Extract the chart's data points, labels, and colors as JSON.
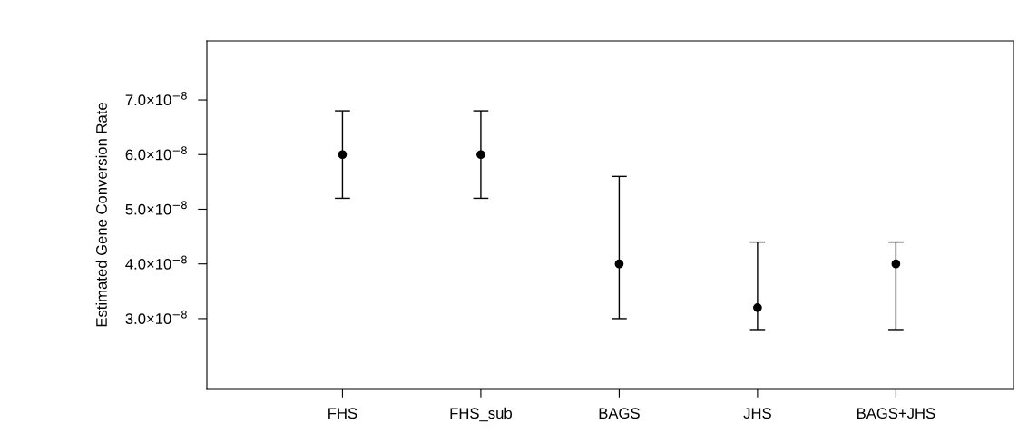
{
  "chart_data": {
    "type": "scatter",
    "ylabel": "Estimated Gene Conversion Rate",
    "categories": [
      "FHS",
      "FHS_sub",
      "BAGS",
      "JHS",
      "BAGS+JHS"
    ],
    "values": [
      6e-08,
      6e-08,
      4e-08,
      3.2e-08,
      4e-08
    ],
    "errors": [
      [
        5.2e-08,
        6.8e-08
      ],
      [
        5.2e-08,
        6.8e-08
      ],
      [
        3e-08,
        5.6e-08
      ],
      [
        2.8e-08,
        4.4e-08
      ],
      [
        2.8e-08,
        4.4e-08
      ]
    ],
    "color": "#000000",
    "marker": "circle",
    "ylim": [
      1.72e-08,
      8.08e-08
    ],
    "yticks": [
      {
        "value": 3e-08,
        "label": "3.0×10$^{−8}$"
      },
      {
        "value": 4e-08,
        "label": "4.0×10$^{−8}$"
      },
      {
        "value": 5e-08,
        "label": "5.0×10$^{−8}$"
      },
      {
        "value": 6e-08,
        "label": "6.0×10$^{−8}$"
      },
      {
        "value": 7e-08,
        "label": "7.0×10$^{−8}$"
      }
    ],
    "grid": false,
    "legend": false
  }
}
